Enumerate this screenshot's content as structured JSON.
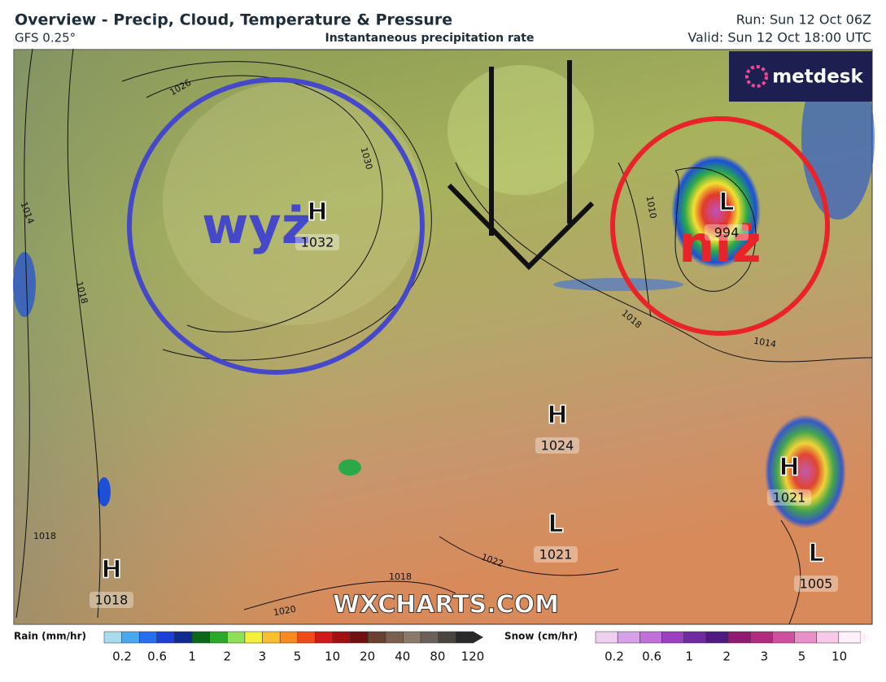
{
  "header": {
    "title": "Overview - Precip, Cloud, Temperature & Pressure",
    "model": "GFS 0.25°",
    "subtitle": "Instantaneous precipitation rate",
    "run": "Run: Sun 12 Oct 06Z",
    "valid": "Valid: Sun 12 Oct 18:00 UTC"
  },
  "logo": "metdesk",
  "map": {
    "annotations": [
      "wyż",
      "niż"
    ],
    "pressure_centers": [
      {
        "kind": "H",
        "value": 1032
      },
      {
        "kind": "H",
        "value": 1024
      },
      {
        "kind": "H",
        "value": 1021
      },
      {
        "kind": "H",
        "value": 1018
      },
      {
        "kind": "L",
        "value": 994
      },
      {
        "kind": "L",
        "value": 1021
      },
      {
        "kind": "L",
        "value": 1005
      }
    ],
    "isobar_labels": [
      1026,
      1030,
      1014,
      1018,
      1010,
      1018,
      1014,
      1022,
      1018,
      1020,
      1018
    ],
    "watermark": "WXCHARTS.COM"
  },
  "legend": {
    "rain": {
      "label": "Rain (mm/hr)",
      "ticks": [
        0.2,
        0.6,
        1,
        2,
        3,
        5,
        10,
        20,
        40,
        80,
        120
      ]
    },
    "snow": {
      "label": "Snow (cm/hr)",
      "ticks": [
        0.2,
        0.6,
        1,
        2,
        3,
        5,
        10
      ]
    }
  }
}
